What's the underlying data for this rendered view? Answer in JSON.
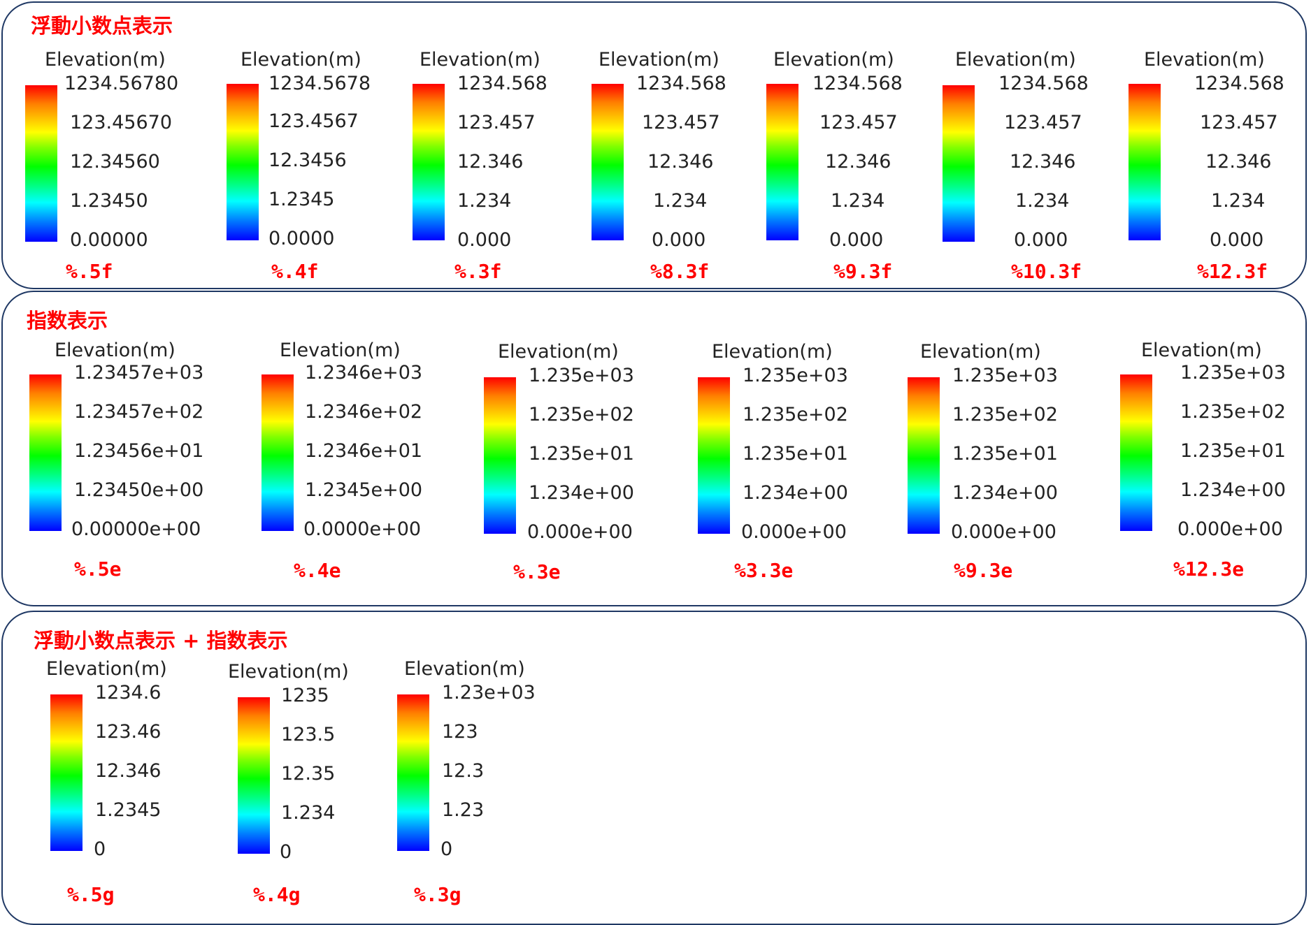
{
  "colorbar_colors": [
    "#ff0000",
    "#ffff00",
    "#00ff00",
    "#00ffff",
    "#0000ff"
  ],
  "panels": [
    {
      "title": "浮動小数点表示",
      "legends": [
        {
          "title": "Elevation(m)",
          "ticks": [
            "1234.56780",
            "123.45670",
            "12.34560",
            "1.23450",
            "0.00000"
          ],
          "format": "%.5f"
        },
        {
          "title": "Elevation(m)",
          "ticks": [
            "1234.5678",
            "123.4567",
            "12.3456",
            "1.2345",
            "0.0000"
          ],
          "format": "%.4f"
        },
        {
          "title": "Elevation(m)",
          "ticks": [
            "1234.568",
            "123.457",
            "12.346",
            "1.234",
            "0.000"
          ],
          "format": "%.3f"
        },
        {
          "title": "Elevation(m)",
          "ticks": [
            "1234.568",
            "123.457",
            "12.346",
            "1.234",
            "0.000"
          ],
          "format": "%8.3f"
        },
        {
          "title": "Elevation(m)",
          "ticks": [
            "1234.568",
            "123.457",
            "12.346",
            "1.234",
            "0.000"
          ],
          "format": "%9.3f"
        },
        {
          "title": "Elevation(m)",
          "ticks": [
            "1234.568",
            "123.457",
            "12.346",
            "1.234",
            "0.000"
          ],
          "format": "%10.3f"
        },
        {
          "title": "Elevation(m)",
          "ticks": [
            "1234.568",
            "123.457",
            "12.346",
            "1.234",
            "0.000"
          ],
          "format": "%12.3f"
        }
      ]
    },
    {
      "title": "指数表示",
      "legends": [
        {
          "title": "Elevation(m)",
          "ticks": [
            "1.23457e+03",
            "1.23457e+02",
            "1.23456e+01",
            "1.23450e+00",
            "0.00000e+00"
          ],
          "format": "%.5e"
        },
        {
          "title": "Elevation(m)",
          "ticks": [
            "1.2346e+03",
            "1.2346e+02",
            "1.2346e+01",
            "1.2345e+00",
            "0.0000e+00"
          ],
          "format": "%.4e"
        },
        {
          "title": "Elevation(m)",
          "ticks": [
            "1.235e+03",
            "1.235e+02",
            "1.235e+01",
            "1.234e+00",
            "0.000e+00"
          ],
          "format": "%.3e"
        },
        {
          "title": "Elevation(m)",
          "ticks": [
            "1.235e+03",
            "1.235e+02",
            "1.235e+01",
            "1.234e+00",
            "0.000e+00"
          ],
          "format": "%3.3e"
        },
        {
          "title": "Elevation(m)",
          "ticks": [
            "1.235e+03",
            "1.235e+02",
            "1.235e+01",
            "1.234e+00",
            "0.000e+00"
          ],
          "format": "%9.3e"
        },
        {
          "title": "Elevation(m)",
          "ticks": [
            "1.235e+03",
            "1.235e+02",
            "1.235e+01",
            "1.234e+00",
            "0.000e+00"
          ],
          "format": "%12.3e"
        }
      ]
    },
    {
      "title": "浮動小数点表示 + 指数表示",
      "legends": [
        {
          "title": "Elevation(m)",
          "ticks": [
            "1234.6",
            "123.46",
            "12.346",
            "1.2345",
            "0"
          ],
          "format": "%.5g"
        },
        {
          "title": "Elevation(m)",
          "ticks": [
            "1235",
            "123.5",
            "12.35",
            "1.234",
            "0"
          ],
          "format": "%.4g"
        },
        {
          "title": "Elevation(m)",
          "ticks": [
            "1.23e+03",
            "123",
            "12.3",
            "1.23",
            "0"
          ],
          "format": "%.3g"
        }
      ]
    }
  ]
}
